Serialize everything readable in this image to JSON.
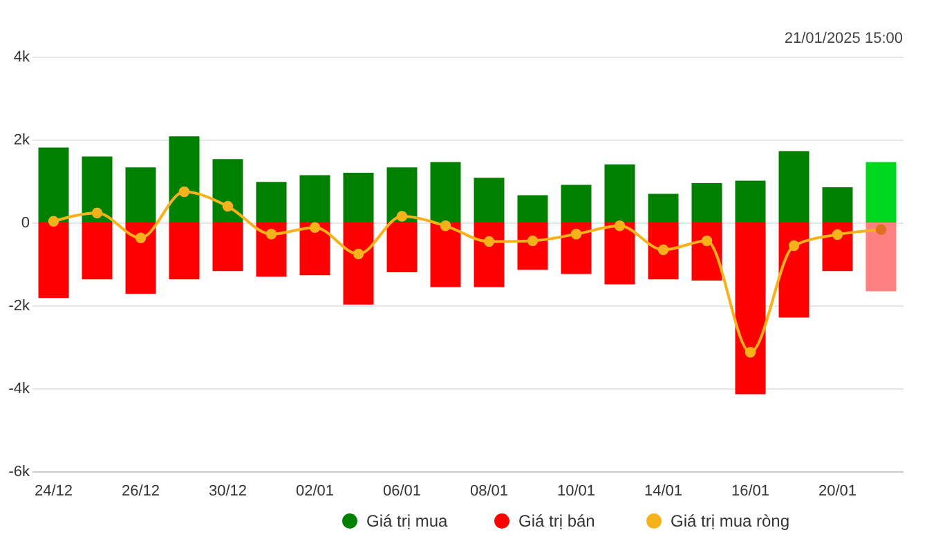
{
  "chart_data": {
    "type": "bar",
    "categories": [
      "24/12",
      null,
      "26/12",
      null,
      "30/12",
      null,
      "02/01",
      null,
      "06/01",
      null,
      "08/01",
      null,
      "10/01",
      null,
      "14/01",
      null,
      "16/01",
      null,
      "20/01",
      null
    ],
    "series": [
      {
        "name": "Giá trị mua",
        "color": "#008000",
        "colors": [
          "#008000",
          "#008000",
          "#008000",
          "#008000",
          "#008000",
          "#008000",
          "#008000",
          "#008000",
          "#008000",
          "#008000",
          "#008000",
          "#008000",
          "#008000",
          "#008000",
          "#008000",
          "#008000",
          "#008000",
          "#008000",
          "#008000",
          "#00d820"
        ],
        "values": [
          1810,
          1590,
          1330,
          2080,
          1530,
          980,
          1140,
          1200,
          1330,
          1460,
          1080,
          660,
          910,
          1400,
          690,
          950,
          1010,
          1720,
          850,
          1460
        ]
      },
      {
        "name": "Giá trị bán",
        "color": "#ff0000",
        "colors": [
          "#ff0000",
          "#ff0000",
          "#ff0000",
          "#ff0000",
          "#ff0000",
          "#ff0000",
          "#ff0000",
          "#ff0000",
          "#ff0000",
          "#ff0000",
          "#ff0000",
          "#ff0000",
          "#ff0000",
          "#ff0000",
          "#ff0000",
          "#ff0000",
          "#ff0000",
          "#ff0000",
          "#ff0000",
          "#ff8080"
        ],
        "values": [
          -1820,
          -1370,
          -1720,
          -1370,
          -1170,
          -1310,
          -1270,
          -1980,
          -1200,
          -1560,
          -1560,
          -1140,
          -1240,
          -1490,
          -1370,
          -1400,
          -4140,
          -2290,
          -1170,
          -1660
        ]
      },
      {
        "name": "Giá trị mua ròng",
        "type": "line",
        "color": "#f5b21a",
        "colors": [
          "#f5b21a",
          "#f5b21a",
          "#f5b21a",
          "#f5b21a",
          "#f5b21a",
          "#f5b21a",
          "#f5b21a",
          "#f5b21a",
          "#f5b21a",
          "#f5b21a",
          "#f5b21a",
          "#f5b21a",
          "#f5b21a",
          "#f5b21a",
          "#f5b21a",
          "#f5b21a",
          "#f5b21a",
          "#f5b21a",
          "#f5b21a",
          "#e07020"
        ],
        "values": [
          30,
          230,
          -370,
          740,
          390,
          -280,
          -120,
          -760,
          150,
          -80,
          -460,
          -440,
          -280,
          -80,
          -660,
          -440,
          -3130,
          -560,
          -290,
          -170
        ]
      }
    ],
    "ylim": [
      -6000,
      4000
    ],
    "yticks": [
      {
        "value": -6000,
        "label": "-6k"
      },
      {
        "value": -4000,
        "label": "-4k"
      },
      {
        "value": -2000,
        "label": "-2k"
      },
      0,
      {
        "value": 2000,
        "label": "2k"
      },
      {
        "value": 4000,
        "label": "4k"
      }
    ],
    "stacked": true,
    "grid": "y",
    "legend": "bottom",
    "marker": "circle",
    "line_style": "solid",
    "annotations": [
      "21/01/2025 15:00"
    ]
  }
}
